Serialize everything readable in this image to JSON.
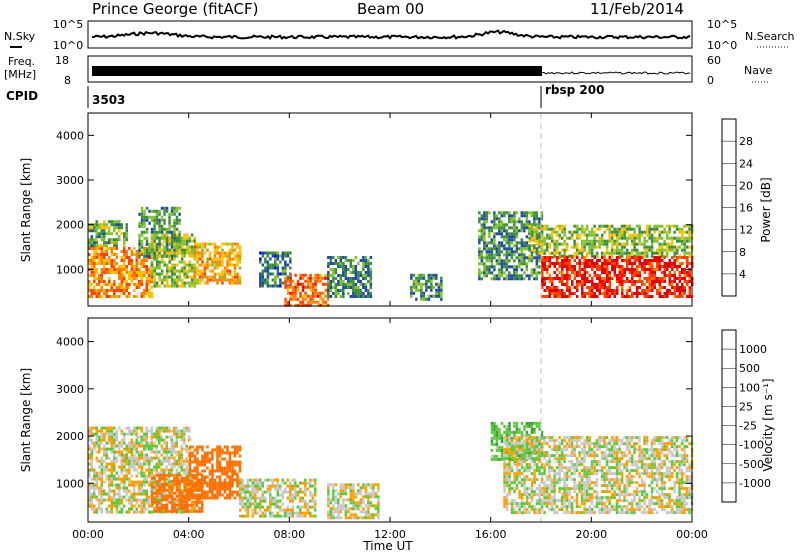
{
  "header": {
    "station": "Prince George (fitACF)",
    "beam": "Beam 00",
    "date": "11/Feb/2014"
  },
  "noise_panel": {
    "left_label": "N.Sky",
    "right_label": "N.Search",
    "left_ticks": [
      "10^5",
      "10^0"
    ],
    "right_ticks": [
      "10^5",
      "10^0"
    ]
  },
  "freq_panel": {
    "left_label_line1": "Freq.",
    "left_label_line2": "[MHz]",
    "left_ticks": [
      "18",
      "8"
    ],
    "right_label": "Nave",
    "right_ticks": [
      "60",
      "0"
    ]
  },
  "cpid_panel": {
    "label": "CPID",
    "segments": [
      {
        "start_hour": 0,
        "text": "3503"
      },
      {
        "start_hour": 18,
        "text": "rbsp 200"
      }
    ]
  },
  "power_panel": {
    "ylabel": "Slant Range [km]",
    "cbar_label": "Power [dB]",
    "cbar_ticks": [
      "28",
      "24",
      "20",
      "16",
      "12",
      "8",
      "4"
    ],
    "cbar_colors": [
      "#e80000",
      "#ff4000",
      "#ff8000",
      "#ffc000",
      "#80c030",
      "#3c8c3c",
      "#204ca0",
      "#0000ff"
    ]
  },
  "velocity_panel": {
    "ylabel": "Slant Range [km]",
    "cbar_label": "Velocity [m s⁻¹]",
    "cbar_ticks": [
      "1000",
      "500",
      "100",
      "25",
      "-25",
      "-100",
      "-500",
      "-1000"
    ],
    "cbar_colors": [
      "#2840c0",
      "#3c6c9c",
      "#3c9c3c",
      "#5cc83c",
      "#c8c8c8",
      "#ffa000",
      "#ff7000",
      "#ff3000",
      "#e80000"
    ]
  },
  "xaxis": {
    "label": "Time UT",
    "ticks": [
      "00:00",
      "04:00",
      "08:00",
      "12:00",
      "16:00",
      "20:00",
      "00:00"
    ]
  },
  "chart_data": {
    "type": "heatmap",
    "title": "Prince George (fitACF)",
    "xlabel": "Time UT",
    "ylabel": "Slant Range [km]",
    "x_range_hours": [
      0,
      24
    ],
    "y_range_km": [
      180,
      4500
    ],
    "y_ticks": [
      1000,
      2000,
      3000,
      4000
    ],
    "panels": [
      {
        "name": "Power [dB]",
        "scale": [
          0,
          30
        ],
        "regions": [
          {
            "t0": 0.0,
            "t1": 2.5,
            "r0": 400,
            "r1": 1500,
            "level": 22
          },
          {
            "t0": 0.0,
            "t1": 1.5,
            "r0": 1500,
            "r1": 2100,
            "level": 12
          },
          {
            "t0": 2.0,
            "t1": 3.6,
            "r0": 1300,
            "r1": 2400,
            "level": 11
          },
          {
            "t0": 2.5,
            "t1": 4.2,
            "r0": 600,
            "r1": 1800,
            "level": 14
          },
          {
            "t0": 4.2,
            "t1": 6.0,
            "r0": 700,
            "r1": 1600,
            "level": 20
          },
          {
            "t0": 6.8,
            "t1": 8.0,
            "r0": 600,
            "r1": 1400,
            "level": 8
          },
          {
            "t0": 7.8,
            "t1": 9.5,
            "r0": 200,
            "r1": 900,
            "level": 24
          },
          {
            "t0": 9.5,
            "t1": 11.2,
            "r0": 400,
            "r1": 1300,
            "level": 9
          },
          {
            "t0": 12.8,
            "t1": 14.0,
            "r0": 300,
            "r1": 900,
            "level": 10
          },
          {
            "t0": 15.5,
            "t1": 18.0,
            "r0": 800,
            "r1": 2300,
            "level": 10
          },
          {
            "t0": 17.5,
            "t1": 24.0,
            "r0": 1300,
            "r1": 2000,
            "level": 14
          },
          {
            "t0": 18.0,
            "t1": 24.0,
            "r0": 400,
            "r1": 1300,
            "level": 28
          }
        ]
      },
      {
        "name": "Velocity [m s-1]",
        "scale": [
          -1000,
          1000
        ],
        "regions": [
          {
            "t0": 0.0,
            "t1": 4.0,
            "r0": 400,
            "r1": 2200,
            "level": 0
          },
          {
            "t0": 2.5,
            "t1": 4.5,
            "r0": 400,
            "r1": 1200,
            "level": -150
          },
          {
            "t0": 4.0,
            "t1": 6.0,
            "r0": 700,
            "r1": 1800,
            "level": -250
          },
          {
            "t0": 6.0,
            "t1": 9.0,
            "r0": 300,
            "r1": 1100,
            "level": 0
          },
          {
            "t0": 9.5,
            "t1": 11.5,
            "r0": 300,
            "r1": 1000,
            "level": 0
          },
          {
            "t0": 16.0,
            "t1": 18.0,
            "r0": 1500,
            "r1": 2300,
            "level": 80
          },
          {
            "t0": 16.5,
            "t1": 24.0,
            "r0": 400,
            "r1": 2000,
            "level": 0
          }
        ]
      }
    ]
  }
}
